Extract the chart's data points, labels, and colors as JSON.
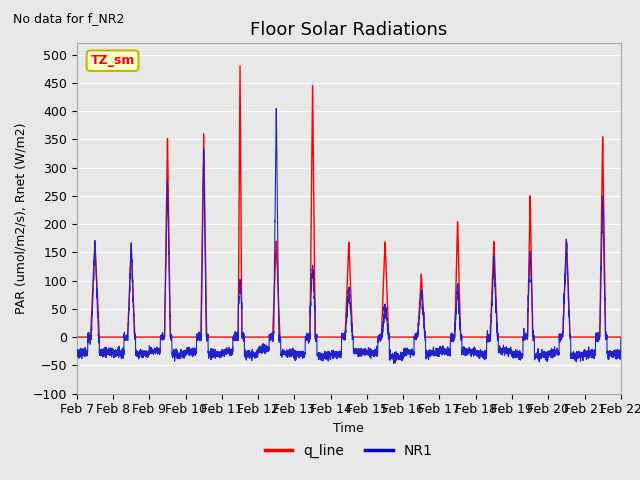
{
  "title": "Floor Solar Radiations",
  "xlabel": "Time",
  "ylabel": "PAR (umol/m2/s), Rnet (W/m2)",
  "top_left_text": "No data for f_NR2",
  "annotation_box": "TZ_sm",
  "ylim": [
    -100,
    520
  ],
  "yticks": [
    -100,
    -50,
    0,
    50,
    100,
    150,
    200,
    250,
    300,
    350,
    400,
    450,
    500
  ],
  "xtick_labels": [
    "Feb 7",
    "Feb 8",
    "Feb 9",
    "Feb 10",
    "Feb 11",
    "Feb 12",
    "Feb 13",
    "Feb 14",
    "Feb 15",
    "Feb 16",
    "Feb 17",
    "Feb 18",
    "Feb 19",
    "Feb 20",
    "Feb 21",
    "Feb 22"
  ],
  "legend_entries": [
    "q_line",
    "NR1"
  ],
  "legend_colors": [
    "#ff0000",
    "#0000cc"
  ],
  "line_color_red": "#ff0000",
  "line_color_blue": "#2222cc",
  "plot_bg_color": "#e8e8e8",
  "fig_bg_color": "#e8e8e8",
  "annotation_box_color": "#ffffcc",
  "annotation_box_edge": "#bbbb00",
  "title_fontsize": 13,
  "label_fontsize": 9,
  "tick_fontsize": 9,
  "red_peaks": [
    170,
    160,
    355,
    360,
    490,
    170,
    455,
    170,
    170,
    110,
    205,
    170,
    250,
    170,
    355
  ],
  "blue_peaks": [
    170,
    170,
    280,
    335,
    100,
    415,
    130,
    90,
    55,
    80,
    90,
    130,
    150,
    175,
    255
  ],
  "red_widths": [
    0.12,
    0.1,
    0.08,
    0.08,
    0.05,
    0.1,
    0.07,
    0.1,
    0.1,
    0.1,
    0.08,
    0.1,
    0.07,
    0.1,
    0.08
  ],
  "blue_widths": [
    0.1,
    0.09,
    0.08,
    0.07,
    0.1,
    0.07,
    0.1,
    0.1,
    0.1,
    0.1,
    0.09,
    0.1,
    0.09,
    0.1,
    0.08
  ]
}
